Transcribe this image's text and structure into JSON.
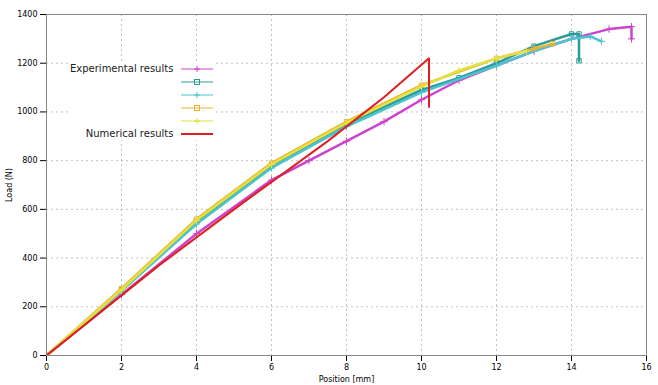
{
  "chart_data": {
    "type": "line",
    "x_label": "Position [mm]",
    "y_label": "Load (N)",
    "xlim": [
      0,
      16
    ],
    "xticks": [
      0,
      2,
      4,
      6,
      8,
      10,
      12,
      14,
      16
    ],
    "ylim": [
      0,
      1400
    ],
    "yticks": [
      0,
      200,
      400,
      600,
      800,
      1000,
      1200,
      1400
    ],
    "grid": true,
    "legend": "upper left",
    "series": [
      {
        "name": "Experimental results",
        "color": "#cc44cc",
        "marker": "plus",
        "line_style": "solid",
        "x": [
          0,
          2,
          4,
          6,
          7,
          8,
          9,
          10,
          11,
          12,
          13,
          14,
          15,
          15.6,
          15.6
        ],
        "values": [
          0,
          250,
          500,
          720,
          800,
          880,
          960,
          1050,
          1130,
          1190,
          1250,
          1300,
          1340,
          1350,
          1300
        ]
      },
      {
        "color": "#2a9d9a",
        "marker": "square",
        "line_style": "solid",
        "x": [
          0,
          2,
          4,
          6,
          8,
          10,
          11,
          12,
          13,
          14,
          14.2,
          14.2
        ],
        "values": [
          0,
          270,
          550,
          780,
          950,
          1090,
          1140,
          1200,
          1270,
          1320,
          1320,
          1210
        ]
      },
      {
        "color": "#4cc3d0",
        "marker": "plus",
        "line_style": "solid",
        "x": [
          0,
          2,
          4,
          6,
          8,
          10,
          12,
          13,
          14,
          14.5,
          14.8
        ],
        "values": [
          0,
          265,
          540,
          770,
          940,
          1080,
          1190,
          1250,
          1300,
          1310,
          1290
        ]
      },
      {
        "color": "#e8b430",
        "marker": "square",
        "line_style": "solid",
        "x": [
          0,
          2,
          4,
          6,
          8,
          10,
          12,
          13,
          13.5
        ],
        "values": [
          0,
          275,
          560,
          790,
          960,
          1110,
          1220,
          1260,
          1280
        ]
      },
      {
        "color": "#e4e040",
        "marker": "plus",
        "line_style": "solid",
        "x": [
          0,
          2,
          4,
          6,
          8,
          10,
          11,
          12,
          12.8
        ],
        "values": [
          0,
          270,
          555,
          785,
          955,
          1105,
          1170,
          1220,
          1250
        ]
      },
      {
        "name": "Numerical results",
        "color": "#dd1f1f",
        "marker": "none",
        "line_style": "solid",
        "x": [
          0,
          3,
          5,
          7.5,
          9,
          10.2,
          10.2
        ],
        "values": [
          0,
          370,
          600,
          880,
          1060,
          1220,
          1020
        ]
      }
    ]
  }
}
